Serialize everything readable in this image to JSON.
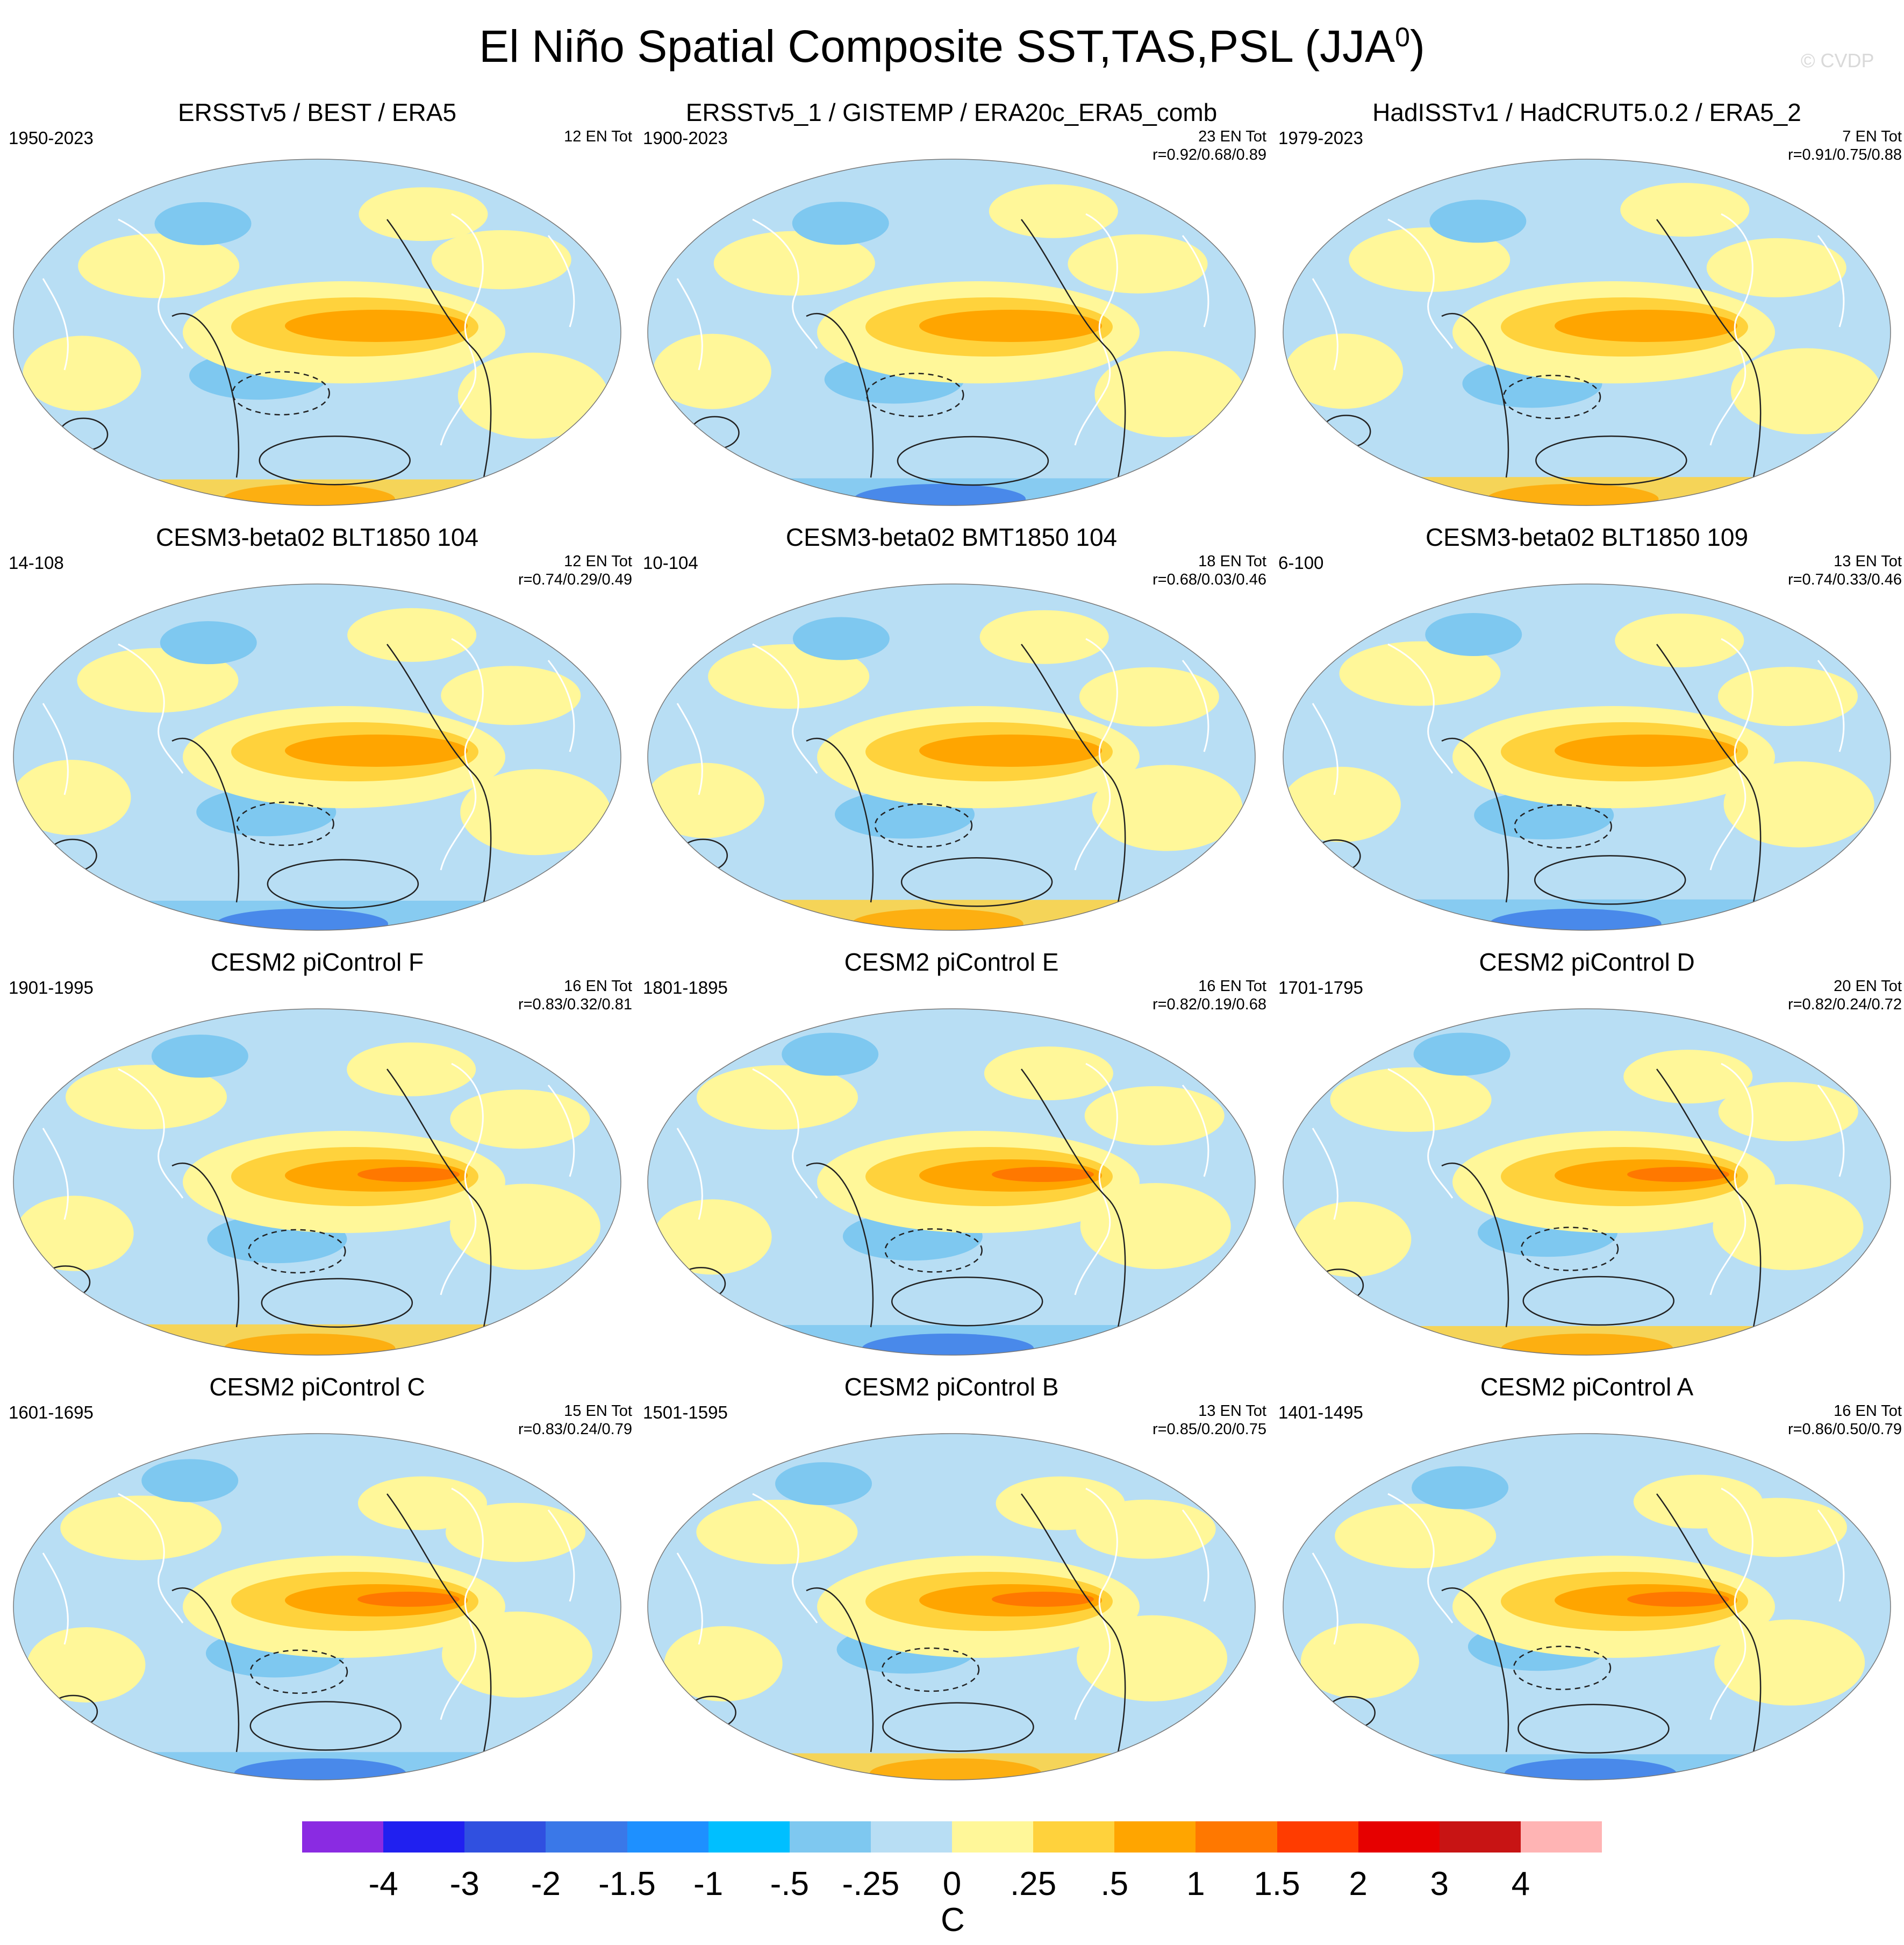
{
  "title_main": "El Niño Spatial Composite SST,TAS,PSL (JJA",
  "title_sup": "0",
  "title_end": ")",
  "copyright": "© CVDP",
  "panels": [
    {
      "title": "ERSSTv5 / BEST / ERA5",
      "years": "1950-2023",
      "events": "12 EN Tot",
      "corr": ""
    },
    {
      "title": "ERSSTv5_1 / GISTEMP / ERA20c_ERA5_comb",
      "years": "1900-2023",
      "events": "23 EN Tot",
      "corr": "r=0.92/0.68/0.89"
    },
    {
      "title": "HadISSTv1 / HadCRUT5.0.2 / ERA5_2",
      "years": "1979-2023",
      "events": "7 EN Tot",
      "corr": "r=0.91/0.75/0.88"
    },
    {
      "title": "CESM3-beta02 BLT1850 104",
      "years": "14-108",
      "events": "12 EN Tot",
      "corr": "r=0.74/0.29/0.49"
    },
    {
      "title": "CESM3-beta02 BMT1850 104",
      "years": "10-104",
      "events": "18 EN Tot",
      "corr": "r=0.68/0.03/0.46"
    },
    {
      "title": "CESM3-beta02 BLT1850 109",
      "years": "6-100",
      "events": "13 EN Tot",
      "corr": "r=0.74/0.33/0.46"
    },
    {
      "title": "CESM2 piControl F",
      "years": "1901-1995",
      "events": "16 EN Tot",
      "corr": "r=0.83/0.32/0.81"
    },
    {
      "title": "CESM2 piControl E",
      "years": "1801-1895",
      "events": "16 EN Tot",
      "corr": "r=0.82/0.19/0.68"
    },
    {
      "title": "CESM2 piControl D",
      "years": "1701-1795",
      "events": "20 EN Tot",
      "corr": "r=0.82/0.24/0.72"
    },
    {
      "title": "CESM2 piControl C",
      "years": "1601-1695",
      "events": "15 EN Tot",
      "corr": "r=0.83/0.24/0.79"
    },
    {
      "title": "CESM2 piControl B",
      "years": "1501-1595",
      "events": "13 EN Tot",
      "corr": "r=0.85/0.20/0.75"
    },
    {
      "title": "CESM2 piControl A",
      "years": "1401-1495",
      "events": "16 EN Tot",
      "corr": "r=0.86/0.50/0.79"
    }
  ],
  "colorbar": {
    "colors": [
      "#8a2be2",
      "#2020f0",
      "#3050e0",
      "#3a78e8",
      "#1e90ff",
      "#00bfff",
      "#7ec8f0",
      "#b8def4",
      "#fff799",
      "#ffd23c",
      "#ffa500",
      "#ff7800",
      "#ff3c00",
      "#e60000",
      "#c81414",
      "#ffb4b4"
    ],
    "labels": [
      "-4",
      "-3",
      "-2",
      "-1.5",
      "-1",
      "-.5",
      "-.25",
      "0",
      ".25",
      ".5",
      "1",
      "1.5",
      "2",
      "3",
      "4"
    ],
    "units": "C"
  },
  "palette": {
    "ocean_base": "#b8def4",
    "warm_light": "#fff799",
    "warm_mid": "#ffd23c",
    "warm_strong": "#ffa500",
    "warm_core": "#ff7800",
    "cool_mid": "#7ec8f0",
    "cool_strong": "#3a78e8"
  }
}
